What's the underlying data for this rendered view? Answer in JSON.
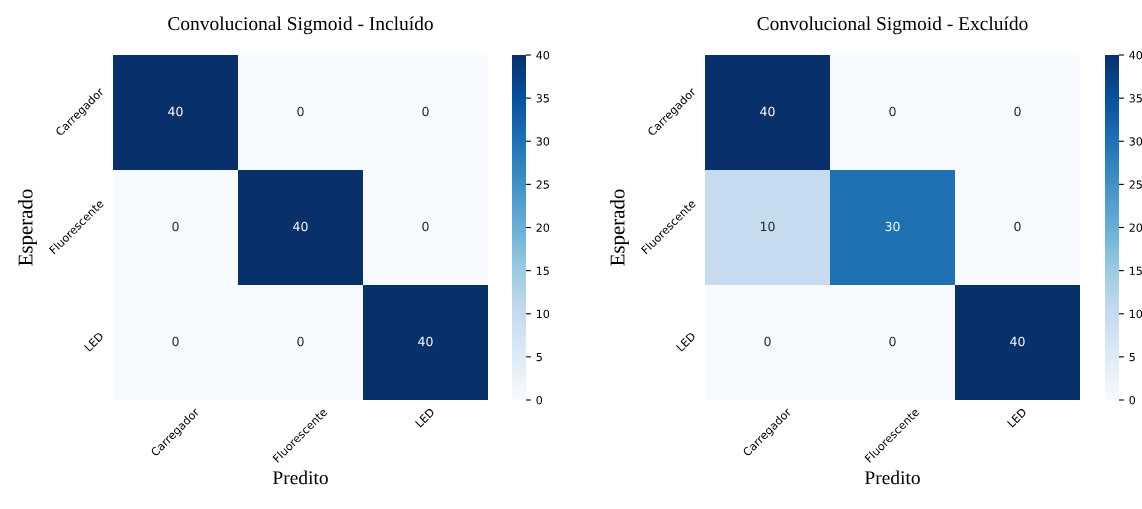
{
  "chart_data": [
    {
      "type": "heatmap",
      "title": "Convolucional Sigmoid - Incluído",
      "xlabel": "Predito",
      "ylabel": "Esperado",
      "categories": [
        "Carregador",
        "Fluorescente",
        "LED"
      ],
      "y_categories": [
        "Carregador",
        "Fluorescente",
        "LED"
      ],
      "cells": [
        [
          40,
          0,
          0
        ],
        [
          0,
          40,
          0
        ],
        [
          0,
          0,
          40
        ]
      ],
      "clim": [
        0,
        40
      ],
      "cticks": [
        0,
        5,
        10,
        15,
        20,
        25,
        30,
        35,
        40
      ],
      "data_labels": true
    },
    {
      "type": "heatmap",
      "title": "Convolucional Sigmoid - Excluído",
      "xlabel": "Predito",
      "ylabel": "Esperado",
      "categories": [
        "Carregador",
        "Fluorescente",
        "LED"
      ],
      "y_categories": [
        "Carregador",
        "Fluorescente",
        "LED"
      ],
      "cells": [
        [
          40,
          0,
          0
        ],
        [
          10,
          30,
          0
        ],
        [
          0,
          0,
          40
        ]
      ],
      "clim": [
        0,
        40
      ],
      "cticks": [
        0,
        5,
        10,
        15,
        20,
        25,
        30,
        35,
        40
      ],
      "data_labels": true
    }
  ]
}
